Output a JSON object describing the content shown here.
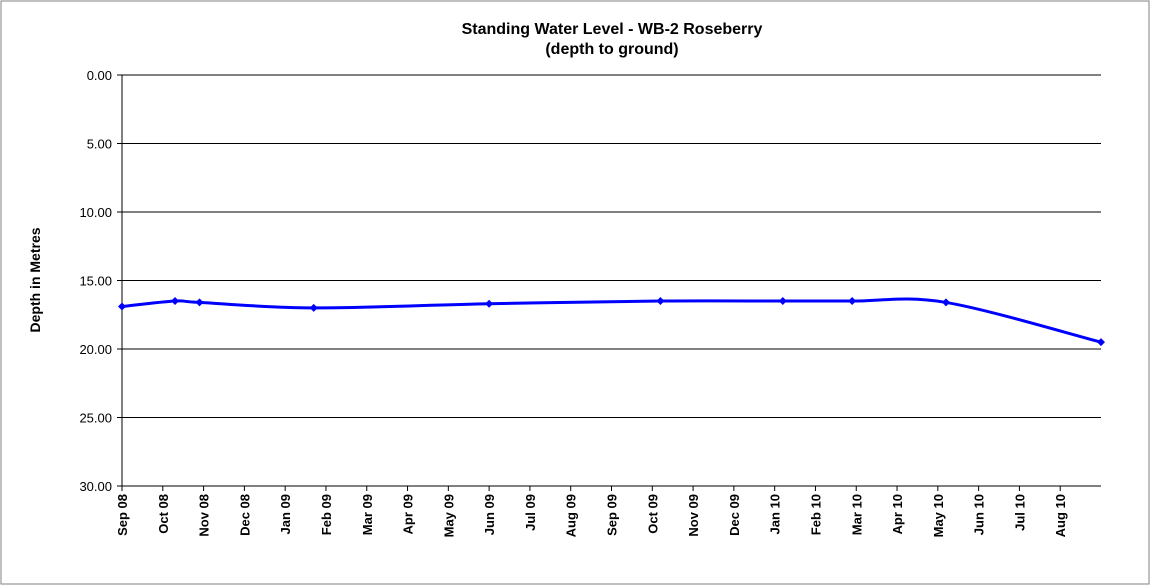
{
  "chart_data": {
    "type": "line",
    "title": "Standing Water Level - WB-2 Roseberry",
    "subtitle": "(depth to ground)",
    "y_label": "Depth in Metres",
    "y_reversed": true,
    "grid": true,
    "xlim": [
      0,
      24
    ],
    "xticks": [
      {
        "value": 0,
        "label": "Sep 08"
      },
      {
        "value": 1,
        "label": "Oct 08"
      },
      {
        "value": 2,
        "label": "Nov 08"
      },
      {
        "value": 3,
        "label": "Dec 08"
      },
      {
        "value": 4,
        "label": "Jan 09"
      },
      {
        "value": 5,
        "label": "Feb 09"
      },
      {
        "value": 6,
        "label": "Mar 09"
      },
      {
        "value": 7,
        "label": "Apr 09"
      },
      {
        "value": 8,
        "label": "May 09"
      },
      {
        "value": 9,
        "label": "Jun 09"
      },
      {
        "value": 10,
        "label": "Jul 09"
      },
      {
        "value": 11,
        "label": "Aug 09"
      },
      {
        "value": 12,
        "label": "Sep 09"
      },
      {
        "value": 13,
        "label": "Oct 09"
      },
      {
        "value": 14,
        "label": "Nov 09"
      },
      {
        "value": 15,
        "label": "Dec 09"
      },
      {
        "value": 16,
        "label": "Jan 10"
      },
      {
        "value": 17,
        "label": "Feb 10"
      },
      {
        "value": 18,
        "label": "Mar 10"
      },
      {
        "value": 19,
        "label": "Apr 10"
      },
      {
        "value": 20,
        "label": "May 10"
      },
      {
        "value": 21,
        "label": "Jun 10"
      },
      {
        "value": 22,
        "label": "Jul 10"
      },
      {
        "value": 23,
        "label": "Aug 10"
      }
    ],
    "ylim": [
      0,
      30
    ],
    "yticks": [
      {
        "value": 0,
        "label": "0.00"
      },
      {
        "value": 5,
        "label": "5.00"
      },
      {
        "value": 10,
        "label": "10.00"
      },
      {
        "value": 15,
        "label": "15.00"
      },
      {
        "value": 20,
        "label": "20.00"
      },
      {
        "value": 25,
        "label": "25.00"
      },
      {
        "value": 30,
        "label": "30.00"
      }
    ],
    "x": [
      0,
      1.3,
      1.9,
      4.7,
      9.0,
      13.2,
      16.2,
      17.9,
      20.2,
      24.0
    ],
    "series": [
      {
        "color": "#0000ff",
        "values": [
          16.9,
          16.5,
          16.6,
          17.0,
          16.7,
          16.5,
          16.5,
          16.5,
          16.6,
          19.5
        ]
      }
    ]
  }
}
